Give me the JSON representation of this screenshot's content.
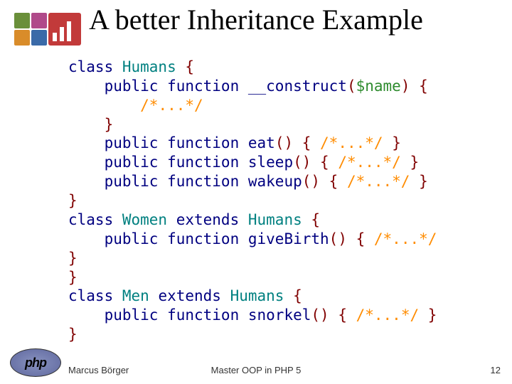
{
  "title": "A better Inheritance Example",
  "code": {
    "l1_a": "class ",
    "l1_b": "Humans ",
    "l1_c": "{",
    "l2_a": "    public function ",
    "l2_b": "__construct",
    "l2_c": "(",
    "l2_d": "$name",
    "l2_e": ") {",
    "l3_a": "        ",
    "l3_b": "/*...*/",
    "l4": "    }",
    "l5_a": "    public function ",
    "l5_b": "eat",
    "l5_c": "() { ",
    "l5_d": "/*...*/",
    "l5_e": " }",
    "l6_a": "    public function ",
    "l6_b": "sleep",
    "l6_c": "() { ",
    "l6_d": "/*...*/",
    "l6_e": " }",
    "l7_a": "    public function ",
    "l7_b": "wakeup",
    "l7_c": "() { ",
    "l7_d": "/*...*/",
    "l7_e": " }",
    "l8": "}",
    "l9_a": "class ",
    "l9_b": "Women ",
    "l9_c": "extends ",
    "l9_d": "Humans ",
    "l9_e": "{",
    "l10_a": "    public function ",
    "l10_b": "giveBirth",
    "l10_c": "() { ",
    "l10_d": "/*...*/",
    "l11": "}",
    "l12": "}",
    "l13_a": "class ",
    "l13_b": "Men ",
    "l13_c": "extends ",
    "l13_d": "Humans ",
    "l13_e": "{",
    "l14_a": "    public function ",
    "l14_b": "snorkel",
    "l14_c": "() { ",
    "l14_d": "/*...*/",
    "l14_e": " }",
    "l15": "}"
  },
  "footer": {
    "author": "Marcus Börger",
    "center": "Master OOP in PHP 5",
    "page": "12"
  },
  "phpLogoText": "php",
  "colors": {
    "keyword": "#000080",
    "type": "#008080",
    "variable": "#2e8b2e",
    "comment": "#ff8c00",
    "default": "#800000",
    "background": "#ffffff"
  },
  "fonts": {
    "title_family": "Times New Roman, serif",
    "title_size_pt": 30,
    "code_family": "Lucida Console, monospace",
    "code_size_pt": 16,
    "footer_size_pt": 10
  }
}
